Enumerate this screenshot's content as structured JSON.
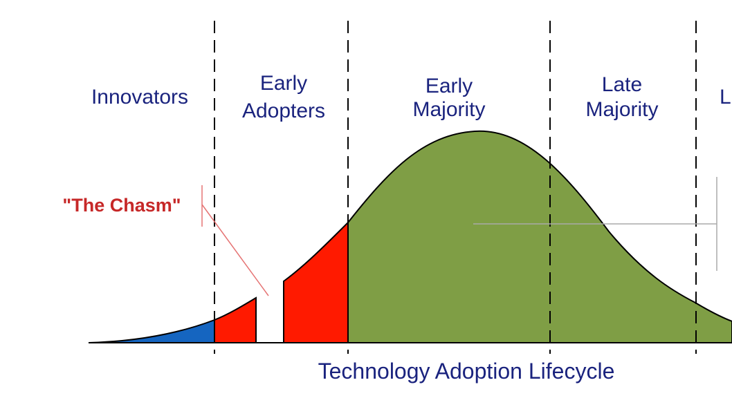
{
  "diagram": {
    "segments": [
      {
        "line1": "Innovators",
        "line2": ""
      },
      {
        "line1": "Early",
        "line2": "Adopters"
      },
      {
        "line1": "Early",
        "line2": "Majority"
      },
      {
        "line1": "Late",
        "line2": "Majority"
      },
      {
        "line1": "L",
        "line2": ""
      }
    ],
    "chasm_label": "\"The Chasm\"",
    "axis_title": "Technology Adoption Lifecycle",
    "colors": {
      "text": "#1a237e",
      "chasm_text": "#c62828",
      "innovators_fill": "#1565c0",
      "early_adopters_fill": "#ff1a00",
      "majority_fill": "#7f9e45",
      "outline": "#000000",
      "guide_line": "#aaaaaa",
      "chasm_pointer": "#e57373"
    }
  }
}
